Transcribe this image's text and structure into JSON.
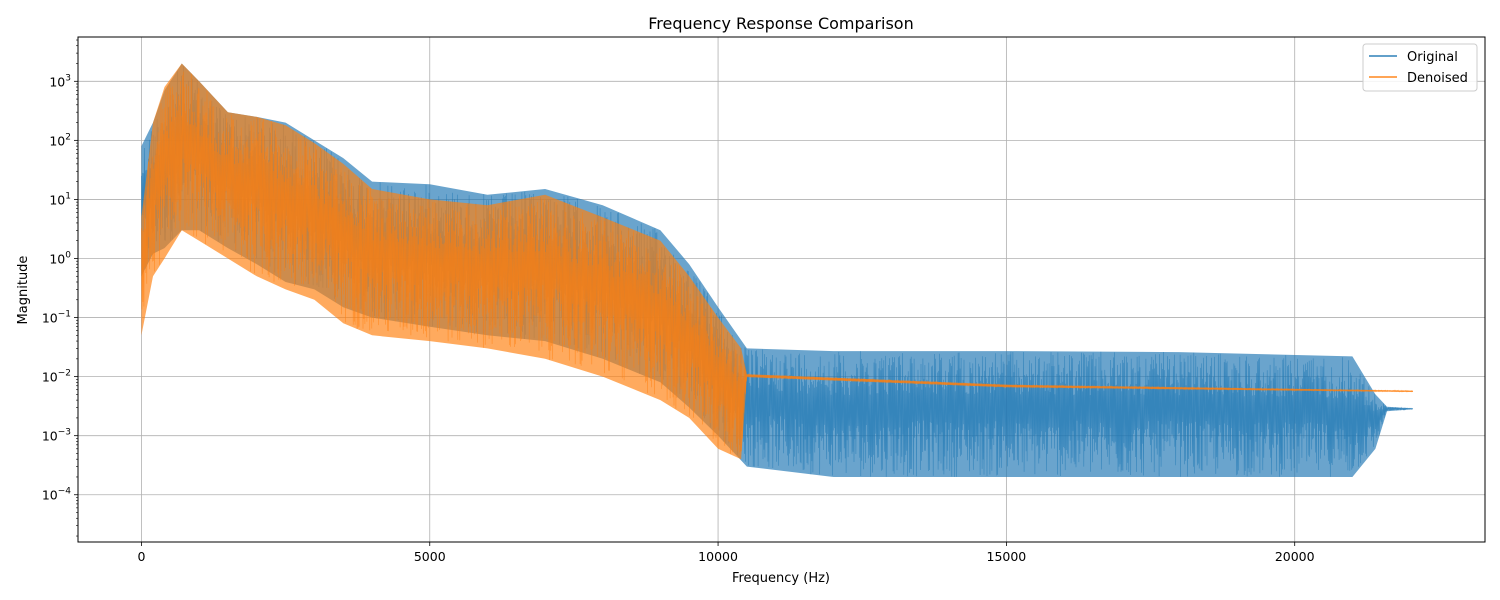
{
  "chart_data": {
    "type": "line",
    "title": "Frequency Response Comparison",
    "xlabel": "Frequency (Hz)",
    "ylabel": "Magnitude",
    "xlim": [
      -1100,
      23300
    ],
    "ylim_log10": [
      -4.8,
      3.75
    ],
    "y_scale": "log",
    "grid": true,
    "legend_position": "top-right",
    "x_ticks": [
      0,
      5000,
      10000,
      15000,
      20000
    ],
    "x_tick_labels": [
      "0",
      "5000",
      "10000",
      "15000",
      "20000"
    ],
    "y_tick_exponents": [
      -4,
      -3,
      -2,
      -1,
      0,
      1,
      2,
      3
    ],
    "y_tick_base": "10",
    "series": [
      {
        "name": "Original",
        "color": "#1f77b4",
        "opacity": 0.7,
        "envelope": [
          {
            "x": 0,
            "upper": 80,
            "lower": 0.5
          },
          {
            "x": 200,
            "upper": 200,
            "lower": 1.2
          },
          {
            "x": 400,
            "upper": 700,
            "lower": 1.5
          },
          {
            "x": 700,
            "upper": 2000,
            "lower": 3
          },
          {
            "x": 1000,
            "upper": 1000,
            "lower": 3
          },
          {
            "x": 1500,
            "upper": 300,
            "lower": 1.5
          },
          {
            "x": 2000,
            "upper": 250,
            "lower": 0.8
          },
          {
            "x": 2500,
            "upper": 200,
            "lower": 0.4
          },
          {
            "x": 3000,
            "upper": 100,
            "lower": 0.3
          },
          {
            "x": 3500,
            "upper": 50,
            "lower": 0.15
          },
          {
            "x": 4000,
            "upper": 20,
            "lower": 0.1
          },
          {
            "x": 5000,
            "upper": 18,
            "lower": 0.07
          },
          {
            "x": 6000,
            "upper": 12,
            "lower": 0.05
          },
          {
            "x": 7000,
            "upper": 15,
            "lower": 0.04
          },
          {
            "x": 8000,
            "upper": 8,
            "lower": 0.02
          },
          {
            "x": 9000,
            "upper": 3,
            "lower": 0.008
          },
          {
            "x": 9500,
            "upper": 0.8,
            "lower": 0.003
          },
          {
            "x": 10000,
            "upper": 0.15,
            "lower": 0.001
          },
          {
            "x": 10500,
            "upper": 0.03,
            "lower": 0.0003
          },
          {
            "x": 12000,
            "upper": 0.027,
            "lower": 0.0002
          },
          {
            "x": 15000,
            "upper": 0.027,
            "lower": 0.0002
          },
          {
            "x": 18000,
            "upper": 0.026,
            "lower": 0.0002
          },
          {
            "x": 21000,
            "upper": 0.022,
            "lower": 0.0002
          },
          {
            "x": 21400,
            "upper": 0.005,
            "lower": 0.0006
          },
          {
            "x": 21600,
            "upper": 0.0031,
            "lower": 0.0026
          },
          {
            "x": 22050,
            "upper": 0.0029,
            "lower": 0.0028
          }
        ]
      },
      {
        "name": "Denoised",
        "color": "#ff7f0e",
        "opacity": 0.7,
        "envelope": [
          {
            "x": 0,
            "upper": 5,
            "lower": 0.05
          },
          {
            "x": 200,
            "upper": 200,
            "lower": 0.5
          },
          {
            "x": 400,
            "upper": 800,
            "lower": 1
          },
          {
            "x": 700,
            "upper": 2000,
            "lower": 3
          },
          {
            "x": 1000,
            "upper": 1000,
            "lower": 2
          },
          {
            "x": 1500,
            "upper": 300,
            "lower": 1
          },
          {
            "x": 2000,
            "upper": 250,
            "lower": 0.5
          },
          {
            "x": 2500,
            "upper": 180,
            "lower": 0.3
          },
          {
            "x": 3000,
            "upper": 90,
            "lower": 0.2
          },
          {
            "x": 3500,
            "upper": 40,
            "lower": 0.08
          },
          {
            "x": 4000,
            "upper": 15,
            "lower": 0.05
          },
          {
            "x": 5000,
            "upper": 10,
            "lower": 0.04
          },
          {
            "x": 6000,
            "upper": 8,
            "lower": 0.03
          },
          {
            "x": 7000,
            "upper": 12,
            "lower": 0.02
          },
          {
            "x": 8000,
            "upper": 5,
            "lower": 0.01
          },
          {
            "x": 9000,
            "upper": 2,
            "lower": 0.004
          },
          {
            "x": 9500,
            "upper": 0.5,
            "lower": 0.002
          },
          {
            "x": 10000,
            "upper": 0.1,
            "lower": 0.0006
          },
          {
            "x": 10400,
            "upper": 0.03,
            "lower": 0.0004
          },
          {
            "x": 10500,
            "upper": 0.011,
            "lower": 0.0098
          },
          {
            "x": 15000,
            "upper": 0.0073,
            "lower": 0.0066
          },
          {
            "x": 22050,
            "upper": 0.0058,
            "lower": 0.0055
          }
        ]
      }
    ]
  }
}
